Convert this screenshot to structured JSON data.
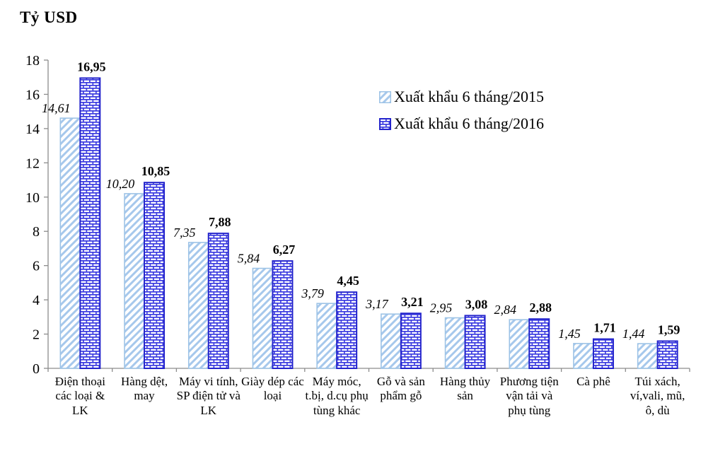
{
  "chart_data": {
    "type": "bar",
    "title": "Tỷ USD",
    "ylabel": "Tỷ USD",
    "xlabel": "",
    "categories": [
      "Điện thoại các loại & LK",
      "Hàng dệt, may",
      "Máy vi tính, SP điện tử và LK",
      "Giày dép các loại",
      "Máy móc, t.bị, d.cụ phụ tùng khác",
      "Gỗ và sản phẩm gỗ",
      "Hàng thủy sản",
      "Phương tiện vận tải và phụ tùng",
      "Cà phê",
      "Túi xách, ví,vali, mũ, ô, dù"
    ],
    "series": [
      {
        "name": "Xuất khẩu 6 tháng/2015",
        "pattern": "diagonal-hatch",
        "values": [
          14.61,
          10.2,
          7.35,
          5.84,
          3.79,
          3.17,
          2.95,
          2.84,
          1.45,
          1.44
        ]
      },
      {
        "name": "Xuất khẩu 6 tháng/2016",
        "pattern": "brick",
        "values": [
          16.95,
          10.85,
          7.88,
          6.27,
          4.45,
          3.21,
          3.08,
          2.88,
          1.71,
          1.59
        ]
      }
    ],
    "ylim": [
      0,
      18
    ],
    "yticks": [
      0,
      2,
      4,
      6,
      8,
      10,
      12,
      14,
      16,
      18
    ],
    "grid": false,
    "legend_position": "upper-right-inside",
    "value_label_decimal": "comma"
  },
  "colors": {
    "series2015_stroke": "#9DC3E6",
    "series2015_hatch": "#A6C8EC",
    "series2016_stroke": "#2424CC",
    "series2016_brick": "#3C3CE0",
    "axis": "#8C8C8C",
    "text": "#000000",
    "background": "#FFFFFF"
  }
}
